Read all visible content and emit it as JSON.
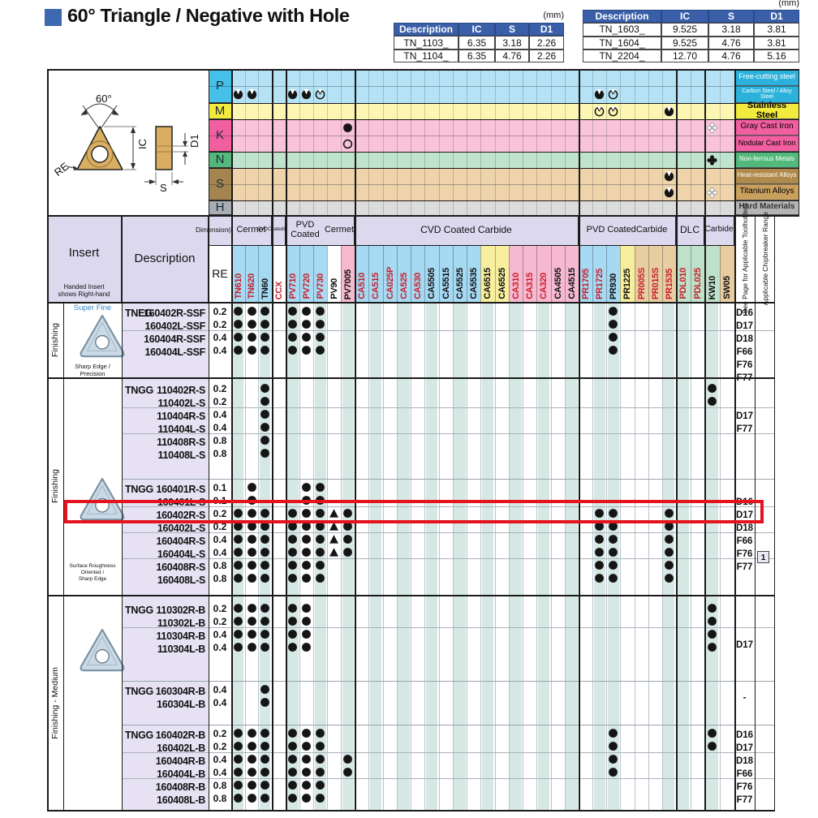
{
  "title": {
    "text": "60° Triangle / Negative with Hole",
    "square_color": "#3e68b0"
  },
  "unit_label": "(mm)",
  "dim_tables": [
    {
      "headers": [
        "Description",
        "IC",
        "S",
        "D1"
      ],
      "rows": [
        [
          "TN_1103_",
          "6.35",
          "3.18",
          "2.26"
        ],
        [
          "TN_1104_",
          "6.35",
          "4.76",
          "2.26"
        ]
      ]
    },
    {
      "headers": [
        "Description",
        "IC",
        "S",
        "D1"
      ],
      "rows": [
        [
          "TN_1603_",
          "9.525",
          "3.18",
          "3.81"
        ],
        [
          "TN_1604_",
          "9.525",
          "4.76",
          "3.81"
        ],
        [
          "TN_2204_",
          "12.70",
          "4.76",
          "5.16"
        ]
      ]
    }
  ],
  "diagram": {
    "angle_label": "60°",
    "re_label": "RE",
    "ic_label": "IC",
    "s_label": "S",
    "d1_label": "D1"
  },
  "material_table": {
    "classes": [
      {
        "code": "P",
        "cell_color": "#45c0e8",
        "body_color": "#b5e3f5",
        "rows": [
          0,
          1
        ]
      },
      {
        "code": "M",
        "cell_color": "#f2ea3d",
        "body_color": "#fdf6b3",
        "rows": [
          2
        ]
      },
      {
        "code": "K",
        "cell_color": "#f25fa0",
        "body_color": "#f9c3da",
        "rows": [
          3,
          4
        ]
      },
      {
        "code": "N",
        "cell_color": "#53b87b",
        "body_color": "#bfe3cc",
        "rows": [
          5
        ]
      },
      {
        "code": "S",
        "cell_color": "#a5854f",
        "body_color": "#eed3ab",
        "rows": [
          6,
          7
        ]
      },
      {
        "code": "H",
        "cell_color": "#a8adb3",
        "body_color": "#dcdcdc",
        "rows": [
          8
        ]
      }
    ],
    "rows": [
      {
        "label": "Free-cutting steel",
        "label_bg": "#2ab2dc",
        "label_fg": "#ffffff",
        "fs": 9,
        "marks": {}
      },
      {
        "label": "Carbon Steel / Alloy Steel",
        "label_bg": "#2ab2dc",
        "label_fg": "#ffffff",
        "fs": 7,
        "marks": {
          "TN610": "dot-notch",
          "TN620": "dot-notch",
          "PV710": "dot-notch",
          "PV720": "dot-notch",
          "PV730": "circle-notch",
          "PR1725": "dot-notch",
          "PR930": "circle-notch"
        }
      },
      {
        "label": "Stainless Steel",
        "label_bg": "#f2ea3d",
        "label_fg": "#000000",
        "fs": 11,
        "bold": true,
        "marks": {
          "PR1725": "circle-notch",
          "PR930": "circle-notch",
          "PR1535": "dot-notch"
        }
      },
      {
        "label": "Gray Cast Iron",
        "label_bg": "#f25fa0",
        "label_fg": "#000000",
        "fs": 10,
        "marks": {
          "PV7005": "dot",
          "KW10": "puzzle-open"
        }
      },
      {
        "label": "Nodular Cast Iron",
        "label_bg": "#f25fa0",
        "label_fg": "#000000",
        "fs": 9,
        "marks": {
          "PV7005": "circle"
        }
      },
      {
        "label": "Non-ferrous Metals",
        "label_bg": "#53b87b",
        "label_fg": "#ffffff",
        "fs": 8,
        "marks": {
          "KW10": "puzzle-filled"
        }
      },
      {
        "label": "Heat-resistant Alloys",
        "label_bg": "#b08a4a",
        "label_fg": "#ffffff",
        "fs": 8,
        "marks": {
          "PR1535": "dot-notch"
        }
      },
      {
        "label": "Titanium Alloys",
        "label_bg": "#c9a05e",
        "label_fg": "#000000",
        "fs": 10,
        "marks": {
          "PR1535": "dot-notch",
          "KW10": "puzzle-open"
        }
      },
      {
        "label": "Hard Materials",
        "label_bg": "#b5b5b5",
        "label_fg": "#333333",
        "fs": 10,
        "bold": true,
        "marks": {}
      }
    ]
  },
  "grade_header": {
    "groups": [
      {
        "label": "Cermet",
        "keys": [
          "TN610",
          "TN620",
          "TN60"
        ],
        "fs": 11
      },
      {
        "label": "CVD\nCoated\nCermet",
        "keys": [
          "CCX"
        ],
        "fs": 6
      },
      {
        "label": "PVD Coated\nCermet",
        "keys": [
          "PV710",
          "PV720",
          "PV730",
          "PV90",
          "PV7005"
        ],
        "fs": 11
      },
      {
        "label": "CVD Coated Carbide",
        "keys": [
          "CA510",
          "CA515",
          "CA025P",
          "CA525",
          "CA530",
          "CA5505",
          "CA5515",
          "CA5525",
          "CA5535",
          "CA6515",
          "CA6525",
          "CA310",
          "CA315",
          "CA320",
          "CA4505",
          "CA4515"
        ],
        "fs": 12
      },
      {
        "label": "PVD Coated\nCarbide",
        "keys": [
          "PR1705",
          "PR1725",
          "PR930",
          "PR1225",
          "PR005S",
          "PR015S",
          "PR1535"
        ],
        "fs": 11
      },
      {
        "label": "DLC",
        "keys": [
          "PDL010",
          "PDL025"
        ],
        "fs": 12
      },
      {
        "label": "Carbide",
        "keys": [
          "KW10",
          "SW05"
        ],
        "fs": 10
      }
    ],
    "columns": {
      "TN610": {
        "bg": "#a6d9f2",
        "fg": "#c8202e",
        "stripe": true
      },
      "TN620": {
        "bg": "#a6d9f2",
        "fg": "#c8202e",
        "stripe": false
      },
      "TN60": {
        "bg": "#a6d9f2",
        "fg": "#111111",
        "stripe": true
      },
      "CCX": {
        "bg": "#ffffff",
        "fg": "#c8202e",
        "stripe": false
      },
      "PV710": {
        "bg": "#a6d9f2",
        "fg": "#c8202e",
        "stripe": true
      },
      "PV720": {
        "bg": "#a6d9f2",
        "fg": "#c8202e",
        "stripe": false
      },
      "PV730": {
        "bg": "#a6d9f2",
        "fg": "#c8202e",
        "stripe": true
      },
      "PV90": {
        "bg": "#ffffff",
        "fg": "#111111",
        "stripe": false
      },
      "PV7005": {
        "bg": "#f6b9d0",
        "fg": "#111111",
        "stripe": true
      },
      "CA510": {
        "bg": "#a6d9f2",
        "fg": "#c8202e",
        "stripe": false
      },
      "CA515": {
        "bg": "#a6d9f2",
        "fg": "#c8202e",
        "stripe": true
      },
      "CA025P": {
        "bg": "#a6d9f2",
        "fg": "#c8202e",
        "stripe": false
      },
      "CA525": {
        "bg": "#a6d9f2",
        "fg": "#c8202e",
        "stripe": true
      },
      "CA530": {
        "bg": "#a6d9f2",
        "fg": "#c8202e",
        "stripe": false
      },
      "CA5505": {
        "bg": "#a6d9f2",
        "fg": "#111111",
        "stripe": true
      },
      "CA5515": {
        "bg": "#a6d9f2",
        "fg": "#111111",
        "stripe": false
      },
      "CA5525": {
        "bg": "#a6d9f2",
        "fg": "#111111",
        "stripe": true
      },
      "CA5535": {
        "bg": "#a6d9f2",
        "fg": "#111111",
        "stripe": false
      },
      "CA6515": {
        "bg": "#f7ef9e",
        "fg": "#111111",
        "stripe": true
      },
      "CA6525": {
        "bg": "#f7ef9e",
        "fg": "#111111",
        "stripe": false
      },
      "CA310": {
        "bg": "#f6b9d0",
        "fg": "#c8202e",
        "stripe": true
      },
      "CA315": {
        "bg": "#f6b9d0",
        "fg": "#c8202e",
        "stripe": false
      },
      "CA320": {
        "bg": "#f6b9d0",
        "fg": "#c8202e",
        "stripe": true
      },
      "CA4505": {
        "bg": "#f6b9d0",
        "fg": "#111111",
        "stripe": false
      },
      "CA4515": {
        "bg": "#f6b9d0",
        "fg": "#111111",
        "stripe": true
      },
      "PR1705": {
        "bg": "#a6d9f2",
        "fg": "#c8202e",
        "stripe": false
      },
      "PR1725": {
        "bg": "#a6d9f2",
        "fg": "#c8202e",
        "stripe": true
      },
      "PR930": {
        "bg": "#a6d9f2",
        "fg": "#111111",
        "stripe": true
      },
      "PR1225": {
        "bg": "#f7ef9e",
        "fg": "#111111",
        "stripe": false
      },
      "PR005S": {
        "bg": "#e7cda0",
        "fg": "#c8202e",
        "stripe": false
      },
      "PR015S": {
        "bg": "#e7cda0",
        "fg": "#c8202e",
        "stripe": false
      },
      "PR1535": {
        "bg": "#e7cda0",
        "fg": "#c8202e",
        "stripe": true
      },
      "PDL010": {
        "bg": "#bfe0c9",
        "fg": "#c8202e",
        "stripe": true
      },
      "PDL025": {
        "bg": "#bfe0c9",
        "fg": "#c8202e",
        "stripe": false
      },
      "KW10": {
        "bg": "#bfe0c9",
        "fg": "#111111",
        "stripe": true
      },
      "SW05": {
        "bg": "#e7cda0",
        "fg": "#111111",
        "stripe": false
      }
    }
  },
  "main_header": {
    "insert_label": "Insert",
    "insert_note": "Handed Insert\nshows Right-hand",
    "description_label": "Description",
    "dimension_label": "Dimension\n(mm)",
    "re_label": "RE",
    "see_page_label": "See Page for Applicable Toolholders",
    "chipbreaker_label": "Applicable Chipbreaker Range"
  },
  "sections": [
    {
      "label": "Finishing",
      "caption_top": "Super Fine",
      "caption_bottom": "Sharp Edge / Precision"
    },
    {
      "label": "Finishing",
      "caption_bottom": "Surface Roughness Oriented /\nSharp Edge"
    },
    {
      "label": "Finishing - Medium"
    }
  ],
  "blocks": [
    {
      "rows": [
        {
          "prefix": "TNEG",
          "code": "160402R-SSF",
          "re": "0.2",
          "dots": [
            "TN610",
            "TN620",
            "TN60",
            "PV710",
            "PV720",
            "PV730",
            "PR930"
          ]
        },
        {
          "code": "160402L-SSF",
          "re": "0.2",
          "dots": [
            "TN610",
            "TN620",
            "TN60",
            "PV710",
            "PV720",
            "PV730",
            "PR930"
          ]
        },
        {
          "code": "160404R-SSF",
          "re": "0.4",
          "dots": [
            "TN610",
            "TN620",
            "TN60",
            "PV710",
            "PV720",
            "PV730",
            "PR930"
          ]
        },
        {
          "code": "160404L-SSF",
          "re": "0.4",
          "dots": [
            "TN610",
            "TN620",
            "TN60",
            "PV710",
            "PV720",
            "PV730",
            "PR930"
          ]
        }
      ],
      "pages": [
        {
          "t": "D16",
          "at": 0
        },
        {
          "t": "D17",
          "at": 1
        },
        {
          "t": "D18",
          "at": 2
        },
        {
          "t": "F66",
          "at": 3
        },
        {
          "t": "F76",
          "at": 4
        },
        {
          "t": "F77",
          "at": 5
        }
      ]
    },
    {
      "rows": [
        {
          "prefix": "TNGG",
          "code": "110402R-S",
          "re": "0.2",
          "dots": [
            "TN60",
            "KW10"
          ]
        },
        {
          "code": "110402L-S",
          "re": "0.2",
          "dots": [
            "TN60",
            "KW10"
          ]
        },
        {
          "code": "110404R-S",
          "re": "0.4",
          "dots": [
            "TN60"
          ]
        },
        {
          "code": "110404L-S",
          "re": "0.4",
          "dots": [
            "TN60"
          ]
        },
        {
          "code": "110408R-S",
          "re": "0.8",
          "dots": [
            "TN60"
          ]
        },
        {
          "code": "110408L-S",
          "re": "0.8",
          "dots": [
            "TN60"
          ]
        }
      ],
      "pages": [
        {
          "t": "D17",
          "at": 2
        },
        {
          "t": "F77",
          "at": 3
        }
      ]
    },
    {
      "rows": [
        {
          "prefix": "TNGG",
          "code": "160401R-S",
          "re": "0.1",
          "dots": [
            "TN620",
            "PV720",
            "PV730"
          ]
        },
        {
          "code": "160401L-S",
          "re": "0.1",
          "dots": [
            "TN620",
            "PV720",
            "PV730"
          ]
        },
        {
          "code": "160402R-S",
          "re": "0.2",
          "highlight": true,
          "dots": [
            "TN610",
            "TN620",
            "TN60",
            "PV710",
            "PV720",
            "PV730",
            "PV7005",
            "PR1725",
            "PR930",
            "PR1535"
          ],
          "tris": [
            "PV90"
          ]
        },
        {
          "code": "160402L-S",
          "re": "0.2",
          "dots": [
            "TN610",
            "TN620",
            "TN60",
            "PV710",
            "PV720",
            "PV730",
            "PV7005",
            "PR1725",
            "PR930",
            "PR1535"
          ],
          "tris": [
            "PV90"
          ]
        },
        {
          "code": "160404R-S",
          "re": "0.4",
          "dots": [
            "TN610",
            "TN620",
            "TN60",
            "PV710",
            "PV720",
            "PV730",
            "PV7005",
            "PR1725",
            "PR930",
            "PR1535"
          ],
          "tris": [
            "PV90"
          ]
        },
        {
          "code": "160404L-S",
          "re": "0.4",
          "dots": [
            "TN610",
            "TN620",
            "TN60",
            "PV710",
            "PV720",
            "PV730",
            "PV7005",
            "PR1725",
            "PR930",
            "PR1535"
          ],
          "tris": [
            "PV90"
          ]
        },
        {
          "code": "160408R-S",
          "re": "0.8",
          "dots": [
            "TN610",
            "TN620",
            "TN60",
            "PV710",
            "PV720",
            "PV730",
            "PR1725",
            "PR930",
            "PR1535"
          ]
        },
        {
          "code": "160408L-S",
          "re": "0.8",
          "dots": [
            "TN610",
            "TN620",
            "TN60",
            "PV710",
            "PV720",
            "PV730",
            "PR1725",
            "PR930",
            "PR1535"
          ]
        }
      ],
      "pages": [
        {
          "t": "D16",
          "at": 1
        },
        {
          "t": "D17",
          "at": 2
        },
        {
          "t": "D18",
          "at": 3
        },
        {
          "t": "F66",
          "at": 4
        },
        {
          "t": "F76",
          "at": 5
        },
        {
          "t": "F77",
          "at": 6
        }
      ],
      "range_box": {
        "label": "1",
        "at": 5.45
      }
    },
    {
      "rows": [
        {
          "prefix": "TNGG",
          "code": "110302R-B",
          "re": "0.2",
          "dots": [
            "TN610",
            "TN620",
            "TN60",
            "PV710",
            "PV720",
            "KW10"
          ]
        },
        {
          "code": "110302L-B",
          "re": "0.2",
          "dots": [
            "TN610",
            "TN620",
            "TN60",
            "PV710",
            "PV720",
            "KW10"
          ]
        },
        {
          "code": "110304R-B",
          "re": "0.4",
          "dots": [
            "TN610",
            "TN620",
            "TN60",
            "PV710",
            "PV720",
            "KW10"
          ]
        },
        {
          "code": "110304L-B",
          "re": "0.4",
          "dots": [
            "TN610",
            "TN620",
            "TN60",
            "PV710",
            "PV720",
            "KW10"
          ]
        }
      ],
      "pages": [
        {
          "t": "D17",
          "at": 2.7
        }
      ]
    },
    {
      "rows": [
        {
          "prefix": "TNGG",
          "code": "160304R-B",
          "re": "0.4",
          "dots": [
            "TN60"
          ]
        },
        {
          "code": "160304L-B",
          "re": "0.4",
          "dots": [
            "TN60"
          ]
        }
      ],
      "pages": [
        {
          "t": "-",
          "at": 0.5
        }
      ]
    },
    {
      "rows": [
        {
          "prefix": "TNGG",
          "code": "160402R-B",
          "re": "0.2",
          "dots": [
            "TN610",
            "TN620",
            "TN60",
            "PV710",
            "PV720",
            "PV730",
            "PR930",
            "KW10"
          ]
        },
        {
          "code": "160402L-B",
          "re": "0.2",
          "dots": [
            "TN610",
            "TN620",
            "TN60",
            "PV710",
            "PV720",
            "PV730",
            "PR930",
            "KW10"
          ]
        },
        {
          "code": "160404R-B",
          "re": "0.4",
          "dots": [
            "TN610",
            "TN620",
            "TN60",
            "PV710",
            "PV720",
            "PV730",
            "PV7005",
            "PR930"
          ]
        },
        {
          "code": "160404L-B",
          "re": "0.4",
          "dots": [
            "TN610",
            "TN620",
            "TN60",
            "PV710",
            "PV720",
            "PV730",
            "PV7005",
            "PR930"
          ]
        },
        {
          "code": "160408R-B",
          "re": "0.8",
          "dots": [
            "TN610",
            "TN620",
            "TN60",
            "PV710",
            "PV720",
            "PV730"
          ]
        },
        {
          "code": "160408L-B",
          "re": "0.8",
          "dots": [
            "TN610",
            "TN620",
            "TN60",
            "PV710",
            "PV720",
            "PV730"
          ]
        }
      ],
      "pages": [
        {
          "t": "D16",
          "at": 0
        },
        {
          "t": "D17",
          "at": 1
        },
        {
          "t": "D18",
          "at": 2
        },
        {
          "t": "F66",
          "at": 3
        },
        {
          "t": "F76",
          "at": 4
        },
        {
          "t": "F77",
          "at": 5
        }
      ]
    }
  ],
  "colors": {
    "stripe_green": "#d6e8e4",
    "desc_bg": "#e6e2f4",
    "header_lavender": "#dcd8ee",
    "table_header_blue": "#3a5fa8",
    "grid_light": "#b9c2cc",
    "red_text": "#c8202e"
  }
}
